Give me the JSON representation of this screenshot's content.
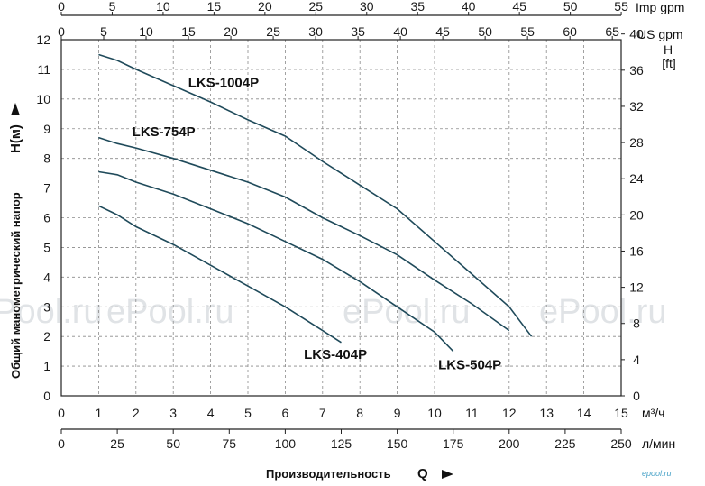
{
  "chart_data": {
    "type": "line",
    "ylabel": "Общий манометрический напор",
    "ylabel_symbol": "H(м)",
    "xlabel": "Производительность",
    "xlabel_symbol": "Q",
    "x_unit_bottom1": "м³/ч",
    "x_unit_bottom2": "л/мин",
    "x_unit_top1": "Imp gpm",
    "x_unit_top2": "US gpm",
    "y_unit_right": "H",
    "y_unit_right2": "[ft]",
    "xlim": [
      0,
      15
    ],
    "ylim": [
      0,
      12
    ],
    "grid": true,
    "x_ticks_m3h": [
      "0",
      "1",
      "2",
      "3",
      "4",
      "5",
      "6",
      "7",
      "8",
      "9",
      "10",
      "11",
      "12",
      "13",
      "14",
      "15"
    ],
    "x_ticks_lmin": [
      {
        "v": 0,
        "label": "0"
      },
      {
        "v": 25,
        "label": "25"
      },
      {
        "v": 50,
        "label": "50"
      },
      {
        "v": 75,
        "label": "75"
      },
      {
        "v": 100,
        "label": "100"
      },
      {
        "v": 125,
        "label": "125"
      },
      {
        "v": 150,
        "label": "150"
      },
      {
        "v": 175,
        "label": "175"
      },
      {
        "v": 200,
        "label": "200"
      },
      {
        "v": 225,
        "label": "225"
      },
      {
        "v": 250,
        "label": "250"
      }
    ],
    "x_ticks_usgpm": [
      {
        "v": 0,
        "label": "0"
      },
      {
        "v": 5,
        "label": "5"
      },
      {
        "v": 10,
        "label": "10"
      },
      {
        "v": 15,
        "label": "15"
      },
      {
        "v": 20,
        "label": "20"
      },
      {
        "v": 25,
        "label": "25"
      },
      {
        "v": 30,
        "label": "30"
      },
      {
        "v": 35,
        "label": "35"
      },
      {
        "v": 40,
        "label": "40"
      },
      {
        "v": 45,
        "label": "45"
      },
      {
        "v": 50,
        "label": "50"
      },
      {
        "v": 55,
        "label": "55"
      },
      {
        "v": 60,
        "label": "60"
      },
      {
        "v": 65,
        "label": "65"
      }
    ],
    "x_ticks_impgpm": [
      {
        "v": 0,
        "label": "0"
      },
      {
        "v": 5,
        "label": "5"
      },
      {
        "v": 10,
        "label": "10"
      },
      {
        "v": 15,
        "label": "15"
      },
      {
        "v": 20,
        "label": "20"
      },
      {
        "v": 25,
        "label": "25"
      },
      {
        "v": 30,
        "label": "30"
      },
      {
        "v": 35,
        "label": "35"
      },
      {
        "v": 40,
        "label": "40"
      },
      {
        "v": 45,
        "label": "45"
      },
      {
        "v": 50,
        "label": "50"
      },
      {
        "v": 55,
        "label": "55"
      }
    ],
    "y_ticks_m": [
      "0",
      "1",
      "2",
      "3",
      "4",
      "5",
      "6",
      "7",
      "8",
      "9",
      "10",
      "11",
      "12"
    ],
    "y_ticks_ft": [
      {
        "v": 0,
        "label": "0"
      },
      {
        "v": 4,
        "label": "4"
      },
      {
        "v": 8,
        "label": "8"
      },
      {
        "v": 12,
        "label": "12"
      },
      {
        "v": 16,
        "label": "16"
      },
      {
        "v": 20,
        "label": "20"
      },
      {
        "v": 24,
        "label": "24"
      },
      {
        "v": 28,
        "label": "28"
      },
      {
        "v": 32,
        "label": "32"
      },
      {
        "v": 36,
        "label": "36"
      },
      {
        "v": 40,
        "label": "40"
      }
    ],
    "series": [
      {
        "name": "LKS-1004P",
        "points": [
          [
            1,
            11.5
          ],
          [
            1.5,
            11.3
          ],
          [
            2,
            11.0
          ],
          [
            3,
            10.45
          ],
          [
            4,
            9.9
          ],
          [
            5,
            9.3
          ],
          [
            6,
            8.75
          ],
          [
            7,
            7.9
          ],
          [
            8,
            7.1
          ],
          [
            9,
            6.3
          ],
          [
            10,
            5.2
          ],
          [
            11,
            4.1
          ],
          [
            12,
            3.0
          ],
          [
            12.6,
            2.0
          ]
        ]
      },
      {
        "name": "LKS-754P",
        "points": [
          [
            1,
            8.7
          ],
          [
            1.5,
            8.5
          ],
          [
            2,
            8.35
          ],
          [
            3,
            8.0
          ],
          [
            4,
            7.6
          ],
          [
            5,
            7.2
          ],
          [
            6,
            6.7
          ],
          [
            7,
            6.0
          ],
          [
            8,
            5.4
          ],
          [
            9,
            4.75
          ],
          [
            10,
            3.9
          ],
          [
            11,
            3.1
          ],
          [
            12,
            2.2
          ]
        ]
      },
      {
        "name": "LKS-504P",
        "points": [
          [
            1,
            7.55
          ],
          [
            1.5,
            7.45
          ],
          [
            2,
            7.2
          ],
          [
            3,
            6.8
          ],
          [
            4,
            6.3
          ],
          [
            5,
            5.8
          ],
          [
            6,
            5.2
          ],
          [
            7,
            4.6
          ],
          [
            8,
            3.85
          ],
          [
            9,
            3.0
          ],
          [
            10,
            2.15
          ],
          [
            10.5,
            1.5
          ]
        ]
      },
      {
        "name": "LKS-404P",
        "points": [
          [
            1,
            6.4
          ],
          [
            1.5,
            6.1
          ],
          [
            2,
            5.7
          ],
          [
            3,
            5.1
          ],
          [
            4,
            4.4
          ],
          [
            5,
            3.7
          ],
          [
            6,
            3.0
          ],
          [
            7,
            2.2
          ],
          [
            7.5,
            1.8
          ]
        ]
      }
    ]
  },
  "watermark": "ePool.ru",
  "logo": "epool.ru"
}
